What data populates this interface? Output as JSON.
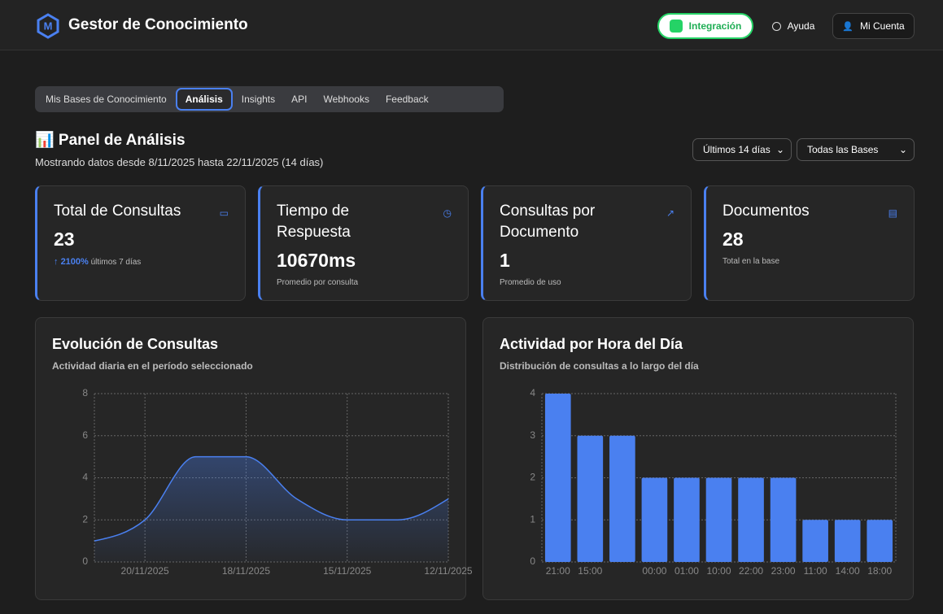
{
  "header": {
    "title": "Gestor de Conocimiento",
    "integration": "Integración",
    "help": "Ayuda",
    "account": "Mi Cuenta"
  },
  "tabs": [
    "Mis Bases de Conocimiento",
    "Análisis",
    "Insights",
    "API",
    "Webhooks",
    "Feedback"
  ],
  "panel": {
    "title": "📊 Panel de Análisis",
    "subtitle": "Mostrando datos desde 8/11/2025 hasta 22/11/2025 (14 días)",
    "period": "Últimos 14 días",
    "bases": "Todas las Bases"
  },
  "cards": [
    {
      "title": "Total de Consultas",
      "value": "23",
      "change": "2100%",
      "note": "últimos 7 días"
    },
    {
      "title": "Tiempo de Respuesta",
      "value": "10670ms",
      "note": "Promedio por consulta"
    },
    {
      "title": "Consultas por Documento",
      "value": "1",
      "note": "Promedio de uso"
    },
    {
      "title": "Documentos",
      "value": "28",
      "note": "Total en la base"
    }
  ],
  "chart_data": [
    {
      "type": "line",
      "title": "Evolución de Consultas",
      "subtitle": "Actividad diaria en el período seleccionado",
      "categories": [
        null,
        "20/11/2025",
        null,
        "18/11/2025",
        null,
        "15/11/2025",
        null,
        "12/11/2025"
      ],
      "values": [
        1,
        2,
        5,
        5,
        3,
        2,
        2,
        3
      ],
      "color": "#4a80f0",
      "ylim": [
        0,
        8
      ],
      "yticks": [
        0,
        2,
        4,
        6,
        8
      ],
      "grid": true
    },
    {
      "type": "bar",
      "title": "Actividad por Hora del Día",
      "subtitle": "Distribución de consultas a lo largo del día",
      "categories": [
        "21:00",
        "15:00",
        null,
        "00:00",
        "01:00",
        "10:00",
        "22:00",
        "23:00",
        "11:00",
        "14:00",
        "18:00"
      ],
      "values": [
        4,
        3,
        3,
        2,
        2,
        2,
        2,
        2,
        1,
        1,
        1
      ],
      "color": "#4a80f0",
      "ylim": [
        0,
        4
      ],
      "yticks": [
        0,
        1,
        2,
        3,
        4
      ],
      "grid": true
    }
  ]
}
